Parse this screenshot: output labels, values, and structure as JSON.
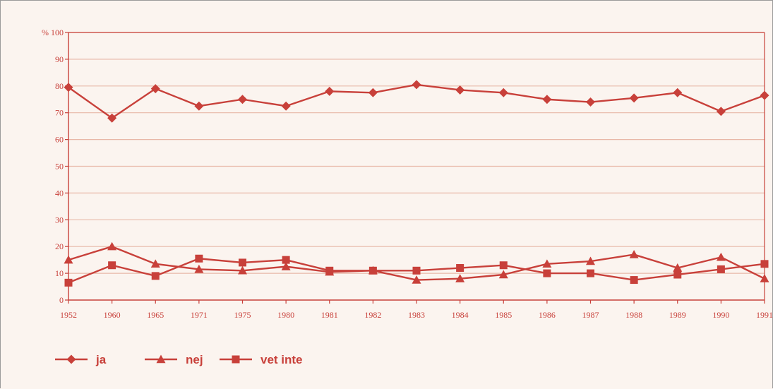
{
  "chart_data": {
    "type": "line",
    "title": "",
    "xlabel": "",
    "ylabel": "%",
    "ylim": [
      0,
      100
    ],
    "yticks": [
      0,
      10,
      20,
      30,
      40,
      50,
      60,
      70,
      80,
      90,
      100
    ],
    "ytick_labels": [
      "0",
      "10",
      "20",
      "30",
      "40",
      "50",
      "60",
      "70",
      "80",
      "90",
      "% 100"
    ],
    "categories": [
      "1952",
      "1960",
      "1965",
      "1971",
      "1975",
      "1980",
      "1981",
      "1982",
      "1983",
      "1984",
      "1985",
      "1986",
      "1987",
      "1988",
      "1989",
      "1990",
      "1991"
    ],
    "series": [
      {
        "name": "ja",
        "marker": "diamond",
        "values": [
          79.5,
          68,
          79,
          72.5,
          75,
          72.5,
          78,
          77.5,
          80.5,
          78.5,
          77.5,
          75,
          74,
          75.5,
          77.5,
          70.5,
          76.5
        ]
      },
      {
        "name": "nej",
        "marker": "triangle",
        "values": [
          15,
          20,
          13.5,
          11.5,
          11,
          12.5,
          10.5,
          11,
          7.5,
          8,
          9.5,
          13.5,
          14.5,
          17,
          12,
          16,
          8
        ]
      },
      {
        "name": "vet inte",
        "marker": "square",
        "values": [
          6.5,
          13,
          9,
          15.5,
          14,
          15,
          11,
          11,
          11,
          12,
          13,
          10,
          10,
          7.5,
          9.5,
          11.5,
          13.5
        ]
      }
    ],
    "grid": true,
    "legend_position": "bottom-left",
    "colors": {
      "line": "#c8403a",
      "grid": "#e8b8a8",
      "background": "#fbf4ef"
    }
  }
}
